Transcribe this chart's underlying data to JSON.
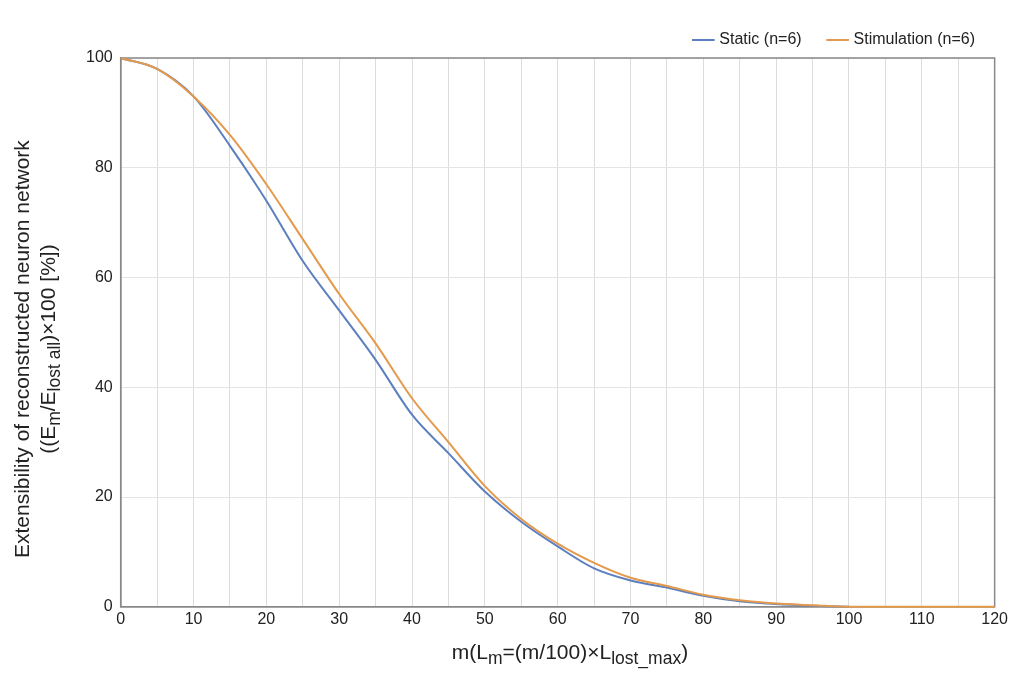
{
  "chart_data": {
    "type": "line",
    "xlabel": "m(L$_{m}$=(m/100)×L$_{lost_max}$)",
    "ylabel": "Extensibility of reconstructed neuron network\n((E$_{m}$/E$_{lost all}$)×100 [%])",
    "x": [
      0,
      5,
      10,
      15,
      20,
      25,
      30,
      35,
      40,
      45,
      50,
      55,
      60,
      65,
      70,
      75,
      80,
      85,
      90,
      95,
      100,
      105,
      110,
      115,
      120
    ],
    "series": [
      {
        "name": "Static (n=6)",
        "color": "#5b7fbf",
        "values": [
          100,
          98,
          93,
          84,
          74,
          63,
          54,
          45,
          35,
          28,
          21,
          15.5,
          11,
          7,
          4.8,
          3.5,
          2,
          1,
          0.5,
          0.2,
          0,
          null,
          null,
          null,
          null
        ]
      },
      {
        "name": "Stimulation (n=6)",
        "color": "#e39a4c",
        "values": [
          100,
          98,
          93,
          86,
          77,
          67,
          57,
          48,
          38,
          30,
          22,
          16,
          11.5,
          8,
          5.3,
          3.8,
          2.2,
          1.2,
          0.6,
          0.3,
          0,
          0,
          0,
          0,
          0
        ]
      }
    ],
    "xlim": [
      0,
      120
    ],
    "ylim": [
      0,
      100
    ],
    "xticks": [
      0,
      {
        "value": 5,
        "label": null
      },
      10,
      {
        "value": 15,
        "label": null
      },
      20,
      {
        "value": 25,
        "label": null
      },
      30,
      {
        "value": 35,
        "label": null
      },
      40,
      {
        "value": 45,
        "label": null
      },
      50,
      {
        "value": 55,
        "label": null
      },
      60,
      {
        "value": 65,
        "label": null
      },
      70,
      {
        "value": 75,
        "label": null
      },
      80,
      {
        "value": 85,
        "label": null
      },
      90,
      {
        "value": 95,
        "label": null
      },
      100,
      {
        "value": 105,
        "label": null
      },
      110,
      {
        "value": 115,
        "label": null
      },
      120
    ],
    "yticks": [
      0,
      20,
      40,
      60,
      80,
      100
    ],
    "grid": true,
    "legend": "top right",
    "marker": "none",
    "line_style": "solid"
  }
}
